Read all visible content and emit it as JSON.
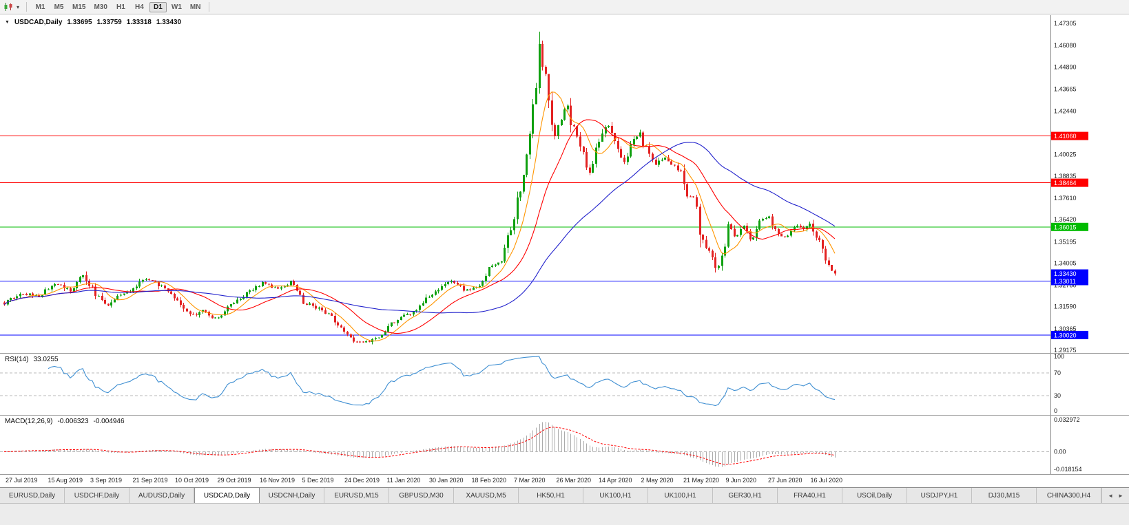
{
  "toolbar": {
    "chart_type_icon": "candlestick-chart-icon",
    "dropdown_caret": "▾",
    "timeframes": [
      "M1",
      "M5",
      "M15",
      "M30",
      "H1",
      "H4",
      "D1",
      "W1",
      "MN"
    ],
    "active_timeframe": "D1"
  },
  "chart": {
    "marker": "▼",
    "title": "USDCAD,Daily",
    "ohlc": {
      "open": "1.33695",
      "high": "1.33759",
      "low": "1.33318",
      "close": "1.33430"
    },
    "y_ticks": [
      "1.47305",
      "1.46080",
      "1.44890",
      "1.43665",
      "1.42440",
      "1.40025",
      "1.38835",
      "1.37610",
      "1.36420",
      "1.35195",
      "1.34005",
      "1.32780",
      "1.31590",
      "1.30365",
      "1.29175"
    ],
    "x_labels": [
      "27 Jul 2019",
      "15 Aug 2019",
      "3 Sep 2019",
      "21 Sep 2019",
      "10 Oct 2019",
      "29 Oct 2019",
      "16 Nov 2019",
      "5 Dec 2019",
      "24 Dec 2019",
      "11 Jan 2020",
      "30 Jan 2020",
      "18 Feb 2020",
      "7 Mar 2020",
      "26 Mar 2020",
      "14 Apr 2020",
      "2 May 2020",
      "21 May 2020",
      "9 Jun 2020",
      "27 Jun 2020",
      "16 Jul 2020"
    ]
  },
  "chart_data": {
    "type": "candlestick",
    "symbol": "USDCAD",
    "period": "Daily",
    "bars": 265,
    "last_close": 1.3343,
    "y_range": {
      "top": 1.47305,
      "bottom": 1.29175
    },
    "up_color": "#0fa00f",
    "down_color": "#e32222",
    "close_path": [
      [
        0.0,
        1.3175
      ],
      [
        0.02,
        1.324
      ],
      [
        0.04,
        1.321
      ],
      [
        0.06,
        1.329
      ],
      [
        0.08,
        1.325
      ],
      [
        0.095,
        1.3335
      ],
      [
        0.11,
        1.323
      ],
      [
        0.125,
        1.3165
      ],
      [
        0.14,
        1.323
      ],
      [
        0.155,
        1.3255
      ],
      [
        0.17,
        1.332
      ],
      [
        0.19,
        1.327
      ],
      [
        0.21,
        1.318
      ],
      [
        0.225,
        1.3105
      ],
      [
        0.24,
        1.314
      ],
      [
        0.255,
        1.3085
      ],
      [
        0.27,
        1.316
      ],
      [
        0.29,
        1.323
      ],
      [
        0.31,
        1.329
      ],
      [
        0.33,
        1.325
      ],
      [
        0.345,
        1.3295
      ],
      [
        0.36,
        1.318
      ],
      [
        0.375,
        1.3155
      ],
      [
        0.39,
        1.312
      ],
      [
        0.405,
        1.3045
      ],
      [
        0.42,
        1.2975
      ],
      [
        0.435,
        1.296
      ],
      [
        0.45,
        1.299
      ],
      [
        0.465,
        1.306
      ],
      [
        0.48,
        1.3105
      ],
      [
        0.495,
        1.314
      ],
      [
        0.51,
        1.3215
      ],
      [
        0.525,
        1.327
      ],
      [
        0.54,
        1.33
      ],
      [
        0.555,
        1.3245
      ],
      [
        0.57,
        1.327
      ],
      [
        0.585,
        1.338
      ],
      [
        0.6,
        1.342
      ],
      [
        0.613,
        1.366
      ],
      [
        0.625,
        1.39
      ],
      [
        0.632,
        1.406
      ],
      [
        0.638,
        1.43
      ],
      [
        0.643,
        1.462
      ],
      [
        0.648,
        1.45
      ],
      [
        0.655,
        1.438
      ],
      [
        0.662,
        1.408
      ],
      [
        0.67,
        1.418
      ],
      [
        0.678,
        1.428
      ],
      [
        0.685,
        1.414
      ],
      [
        0.695,
        1.402
      ],
      [
        0.705,
        1.39
      ],
      [
        0.715,
        1.406
      ],
      [
        0.725,
        1.418
      ],
      [
        0.735,
        1.41
      ],
      [
        0.745,
        1.395
      ],
      [
        0.755,
        1.406
      ],
      [
        0.765,
        1.412
      ],
      [
        0.775,
        1.4
      ],
      [
        0.785,
        1.395
      ],
      [
        0.795,
        1.399
      ],
      [
        0.805,
        1.394
      ],
      [
        0.815,
        1.39
      ],
      [
        0.822,
        1.378
      ],
      [
        0.83,
        1.376
      ],
      [
        0.838,
        1.357
      ],
      [
        0.845,
        1.35
      ],
      [
        0.852,
        1.342
      ],
      [
        0.858,
        1.336
      ],
      [
        0.865,
        1.343
      ],
      [
        0.872,
        1.362
      ],
      [
        0.88,
        1.354
      ],
      [
        0.89,
        1.36
      ],
      [
        0.9,
        1.352
      ],
      [
        0.91,
        1.365
      ],
      [
        0.92,
        1.366
      ],
      [
        0.93,
        1.357
      ],
      [
        0.94,
        1.3545
      ],
      [
        0.95,
        1.361
      ],
      [
        0.96,
        1.359
      ],
      [
        0.97,
        1.362
      ],
      [
        0.98,
        1.352
      ],
      [
        0.988,
        1.343
      ],
      [
        0.995,
        1.337
      ],
      [
        1.0,
        1.3343
      ]
    ],
    "moving_averages": [
      {
        "name": "fast-ma",
        "period": 8,
        "color": "#ff9500"
      },
      {
        "name": "medium-ma",
        "period": 21,
        "color": "#ff0000"
      },
      {
        "name": "slow-ma",
        "period": 55,
        "color": "#2121cc"
      }
    ],
    "horizontal_lines": [
      {
        "label": "1.41060",
        "price": 1.4106,
        "color": "#ff0000"
      },
      {
        "label": "1.38464",
        "price": 1.38464,
        "color": "#ff0000"
      },
      {
        "label": "1.36015",
        "price": 1.36015,
        "color": "#00bb00"
      },
      {
        "label": "1.33011",
        "price": 1.33011,
        "color": "#0000ff"
      },
      {
        "label": "1.30020",
        "price": 1.3002,
        "color": "#0000ff"
      }
    ],
    "price_badge": {
      "label": "1.33430",
      "price": 1.3343,
      "color": "#0000ff"
    }
  },
  "rsi": {
    "label": "RSI(14)",
    "value": "33.0255",
    "period": 14,
    "levels": [
      70,
      30
    ],
    "axis_labels": [
      "100",
      "70",
      "30",
      "0"
    ],
    "axis_values": [
      100,
      70,
      30,
      0
    ],
    "line_color": "#3f8fd2",
    "level_color": "#b8b8b8"
  },
  "macd": {
    "label": "MACD(12,26,9)",
    "value": "-0.006323",
    "signal_value": "-0.004946",
    "fast": 12,
    "slow": 26,
    "signal": 9,
    "axis_labels": [
      "0.032972",
      "0.00",
      "-0.018154"
    ],
    "axis_top": 0.032972,
    "axis_bottom": -0.018154,
    "histogram_color": "#ababab",
    "signal_color": "#ff0000"
  },
  "tabs": {
    "items": [
      "EURUSD,Daily",
      "USDCHF,Daily",
      "AUDUSD,Daily",
      "USDCAD,Daily",
      "USDCNH,Daily",
      "EURUSD,M15",
      "GBPUSD,M30",
      "XAUUSD,M5",
      "HK50,H1",
      "UK100,H1",
      "UK100,H1",
      "GER30,H1",
      "FRA40,H1",
      "USOil,Daily",
      "USDJPY,H1",
      "DJ30,M15",
      "CHINA300,H4"
    ],
    "active_index": 3,
    "scroll_left": "◄",
    "scroll_right": "►"
  }
}
